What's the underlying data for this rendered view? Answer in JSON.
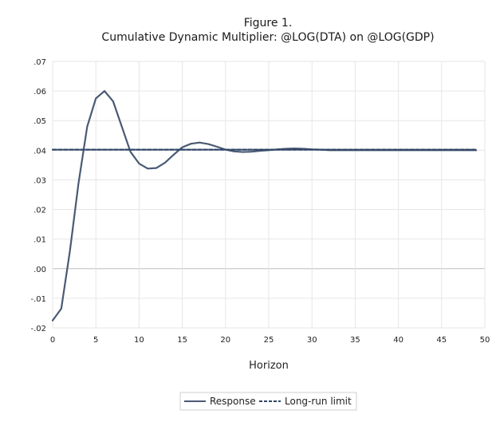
{
  "chart_data": {
    "type": "line",
    "title": "Figure 1.",
    "subtitle": "Cumulative Dynamic Multiplier: @LOG(DTA) on @LOG(GDP)",
    "xlabel": "Horizon",
    "ylabel": "",
    "xlim": [
      0,
      50
    ],
    "ylim": [
      -0.02,
      0.07
    ],
    "x_ticks": [
      0,
      5,
      10,
      15,
      20,
      25,
      30,
      35,
      40,
      45,
      50
    ],
    "x_tick_labels": [
      "0",
      "5",
      "10",
      "15",
      "20",
      "25",
      "30",
      "35",
      "40",
      "45",
      "50"
    ],
    "y_ticks": [
      -0.02,
      -0.01,
      0.0,
      0.01,
      0.02,
      0.03,
      0.04,
      0.05,
      0.06,
      0.07
    ],
    "y_tick_labels": [
      "-.02",
      "-.01",
      ".00",
      ".01",
      ".02",
      ".03",
      ".04",
      ".05",
      ".06",
      ".07"
    ],
    "grid": true,
    "legend_position": "bottom",
    "series": [
      {
        "name": "Response",
        "style": "solid",
        "color": "#4a5a74",
        "x": [
          0,
          1,
          2,
          3,
          4,
          5,
          6,
          7,
          8,
          9,
          10,
          11,
          12,
          13,
          14,
          15,
          16,
          17,
          18,
          19,
          20,
          21,
          22,
          23,
          24,
          25,
          26,
          27,
          28,
          29,
          30,
          31,
          32,
          33,
          34,
          35,
          36,
          37,
          38,
          39,
          40,
          41,
          42,
          43,
          44,
          45,
          46,
          47,
          48,
          49
        ],
        "y": [
          -0.0175,
          -0.0135,
          0.006,
          0.029,
          0.048,
          0.0575,
          0.06,
          0.0565,
          0.048,
          0.0395,
          0.0355,
          0.0338,
          0.034,
          0.0358,
          0.0385,
          0.041,
          0.0422,
          0.0426,
          0.0421,
          0.0412,
          0.0402,
          0.0396,
          0.0394,
          0.0395,
          0.0398,
          0.04,
          0.0403,
          0.0405,
          0.0406,
          0.0405,
          0.0403,
          0.0402,
          0.04,
          0.04,
          0.04,
          0.04,
          0.04,
          0.04,
          0.04,
          0.04,
          0.04,
          0.04,
          0.04,
          0.04,
          0.04,
          0.04,
          0.04,
          0.04,
          0.04,
          0.04
        ]
      },
      {
        "name": "Long-run limit",
        "style": "dashed",
        "color": "#2f4566",
        "x": [
          0,
          49
        ],
        "y": [
          0.0402,
          0.0402
        ]
      }
    ]
  }
}
